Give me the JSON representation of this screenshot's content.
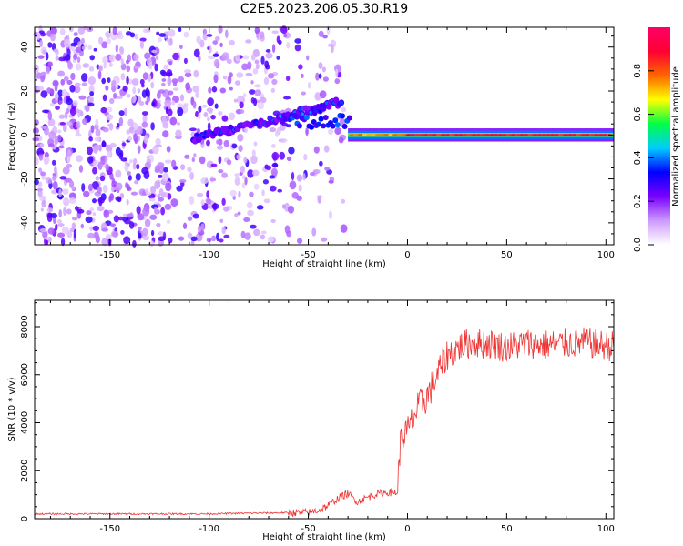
{
  "figure_title": "C2E5.2023.206.05.30.R19",
  "chart_data": [
    {
      "type": "heatmap",
      "xlabel": "Height of straight line (km)",
      "ylabel": "Frequency (Hz)",
      "xlim": [
        -188,
        104
      ],
      "ylim": [
        -50,
        49
      ],
      "xticks": [
        -150,
        -100,
        -50,
        0,
        50,
        100
      ],
      "yticks": [
        -40,
        -20,
        0,
        20,
        40
      ],
      "grid": false,
      "colorbar": {
        "label": "Normalized spectral amplitude",
        "range": [
          0,
          1
        ],
        "ticks": [
          0.0,
          0.2,
          0.4,
          0.6,
          0.8
        ],
        "colormap": [
          "#ffffff",
          "#cc99ff",
          "#7a00ff",
          "#0000ff",
          "#00ccff",
          "#00ff44",
          "#ffff00",
          "#ff6600",
          "#ff0033",
          "#ff0066"
        ]
      },
      "features": [
        {
          "name": "noise",
          "x_range": [
            -188,
            -50
          ],
          "freq_range": [
            -50,
            49
          ],
          "amplitude": 0.1
        },
        {
          "name": "sloped echo",
          "points": [
            [
              -108,
              -2
            ],
            [
              -95,
              1
            ],
            [
              -80,
              4
            ],
            [
              -65,
              7
            ],
            [
              -55,
              10
            ],
            [
              -45,
              12
            ],
            [
              -38,
              14
            ],
            [
              -33,
              15
            ]
          ],
          "amplitude": 0.3
        },
        {
          "name": "zero-Doppler echo",
          "x_range": [
            -30,
            104
          ],
          "freq": 0,
          "amplitude": 0.85
        }
      ]
    },
    {
      "type": "line",
      "xlabel": "Height of straight line (km)",
      "ylabel": "SNR (10 * v/v)",
      "xlim": [
        -188,
        104
      ],
      "ylim": [
        0,
        9100
      ],
      "xticks": [
        -150,
        -100,
        -50,
        0,
        50,
        100
      ],
      "yticks": [
        0,
        2000,
        4000,
        6000,
        8000
      ],
      "grid": false,
      "series": [
        {
          "color": "#ee3333",
          "x": [
            -188,
            -150,
            -100,
            -80,
            -60,
            -50,
            -45,
            -40,
            -35,
            -30,
            -25,
            -20,
            -15,
            -10,
            -5,
            -4,
            -3,
            -2,
            0,
            3,
            6,
            10,
            15,
            20,
            25,
            30,
            40,
            50,
            60,
            70,
            80,
            90,
            100,
            104
          ],
          "y": [
            200,
            200,
            200,
            230,
            250,
            260,
            350,
            550,
            850,
            1050,
            700,
            900,
            1050,
            1100,
            1100,
            2800,
            3300,
            3500,
            3600,
            4200,
            4700,
            5100,
            6000,
            6800,
            7100,
            7300,
            7300,
            7150,
            7300,
            7250,
            7300,
            7350,
            7200,
            7200
          ]
        }
      ]
    }
  ]
}
